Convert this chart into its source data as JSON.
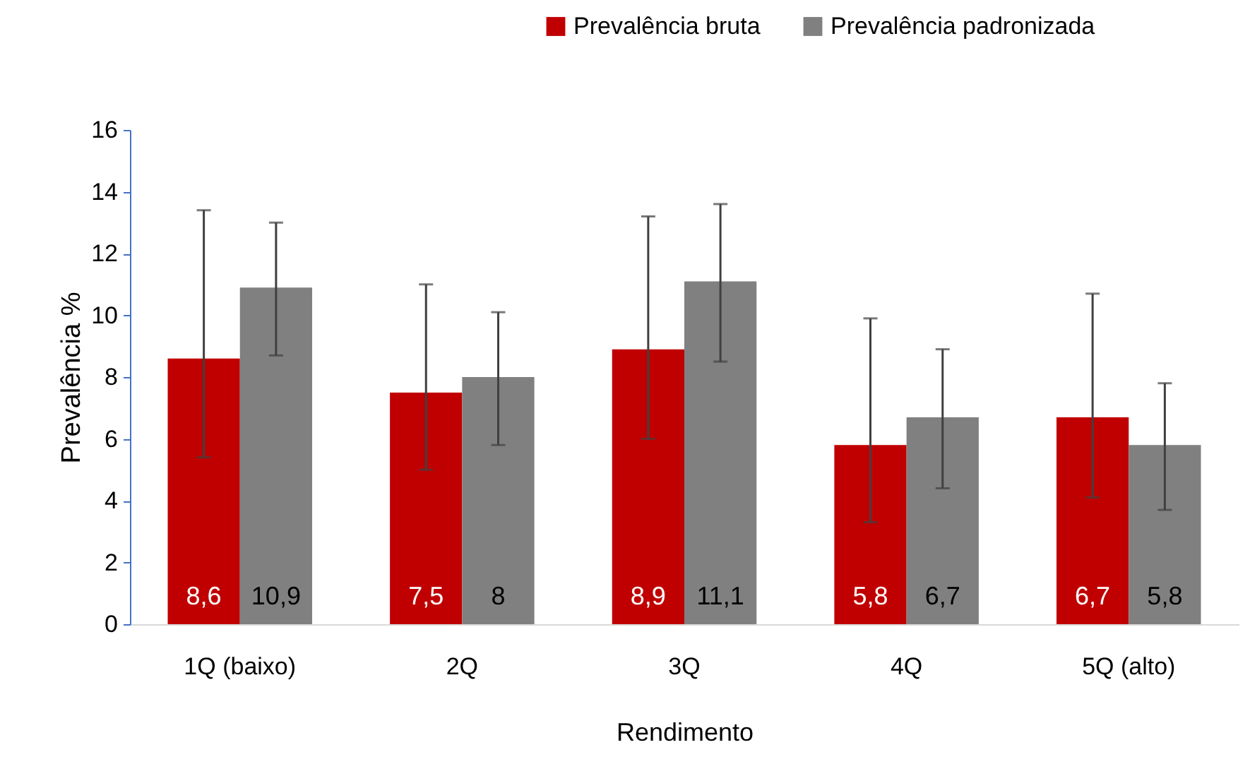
{
  "chart_data": {
    "type": "bar",
    "xlabel": "Rendimento",
    "ylabel": "Prevalência %",
    "categories": [
      "1Q (baixo)",
      "2Q",
      "3Q",
      "4Q",
      "5Q (alto)"
    ],
    "series": [
      {
        "name": "Prevalência bruta",
        "color": "#c00000",
        "values": [
          8.6,
          7.5,
          8.9,
          5.8,
          6.7
        ],
        "value_labels": [
          "8,6",
          "7,5",
          "8,9",
          "5,8",
          "6,7"
        ],
        "errors": [
          [
            5.4,
            13.4
          ],
          [
            5.0,
            11.0
          ],
          [
            6.0,
            13.2
          ],
          [
            3.3,
            9.9
          ],
          [
            4.1,
            10.7
          ]
        ]
      },
      {
        "name": "Prevalência padronizada",
        "color": "#808080",
        "values": [
          10.9,
          8,
          11.1,
          6.7,
          5.8
        ],
        "value_labels": [
          "10,9",
          "8",
          "11,1",
          "6,7",
          "5,8"
        ],
        "errors": [
          [
            8.7,
            13.0
          ],
          [
            5.8,
            10.1
          ],
          [
            8.5,
            13.6
          ],
          [
            4.4,
            8.9
          ],
          [
            3.7,
            7.8
          ]
        ]
      }
    ],
    "ylim": [
      0,
      16
    ],
    "yticks": [
      0,
      2,
      4,
      6,
      8,
      10,
      12,
      14,
      16
    ],
    "legend": "top right"
  }
}
